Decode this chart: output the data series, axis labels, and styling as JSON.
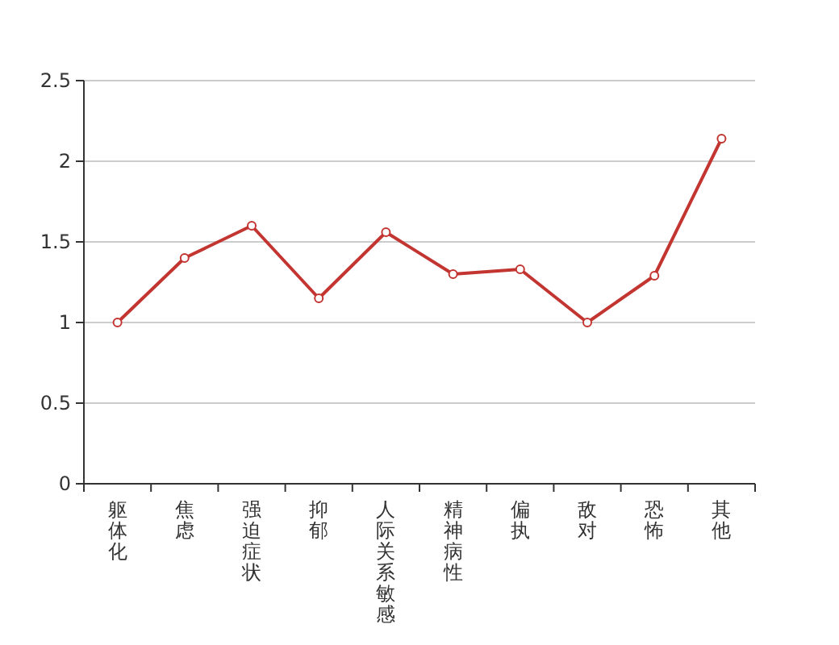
{
  "chart_data": {
    "type": "line",
    "categories": [
      "躯体化",
      "焦虑",
      "强迫症状",
      "抑郁",
      "人际关系敏感",
      "精神病性",
      "偏执",
      "敌对",
      "恐怖",
      "其他"
    ],
    "series": [
      {
        "color": "#c23531",
        "values": [
          1.0,
          1.4,
          1.6,
          1.15,
          1.56,
          1.3,
          1.33,
          1.0,
          1.29,
          2.14
        ]
      }
    ],
    "ylim": [
      0,
      2.5
    ],
    "yticks": [
      0,
      0.5,
      1,
      1.5,
      2,
      2.5
    ],
    "grid": "y",
    "marker": "circle",
    "line_style": "solid"
  }
}
